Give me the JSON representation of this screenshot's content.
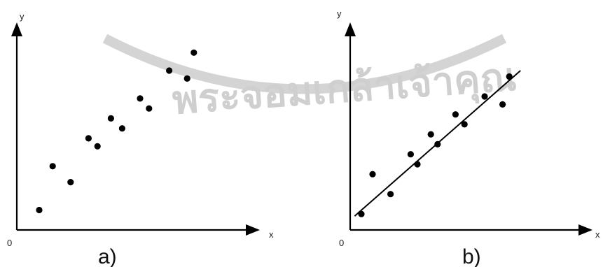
{
  "watermark": {
    "seal_text": "พระจอมเกล้าเจ้าคุณ",
    "color": "#cfcfcf"
  },
  "chart_data": [
    {
      "type": "scatter",
      "panel_label": "a)",
      "xlabel": "x",
      "ylabel": "y",
      "origin_label": "0",
      "xlim": [
        0,
        10
      ],
      "ylim": [
        0,
        10
      ],
      "points": [
        {
          "x": 1.0,
          "y": 1.0
        },
        {
          "x": 1.6,
          "y": 3.2
        },
        {
          "x": 2.4,
          "y": 2.4
        },
        {
          "x": 3.2,
          "y": 4.6
        },
        {
          "x": 3.6,
          "y": 4.2
        },
        {
          "x": 4.2,
          "y": 5.6
        },
        {
          "x": 4.7,
          "y": 5.1
        },
        {
          "x": 5.5,
          "y": 6.6
        },
        {
          "x": 5.9,
          "y": 6.1
        },
        {
          "x": 6.8,
          "y": 8.0
        },
        {
          "x": 7.6,
          "y": 7.6
        },
        {
          "x": 7.9,
          "y": 8.9
        }
      ],
      "fit_line": null,
      "grid": false,
      "legend": "none"
    },
    {
      "type": "scatter",
      "panel_label": "b)",
      "xlabel": "x",
      "ylabel": "y",
      "origin_label": "0",
      "xlim": [
        0,
        10
      ],
      "ylim": [
        0,
        10
      ],
      "points": [
        {
          "x": 0.5,
          "y": 0.8
        },
        {
          "x": 1.0,
          "y": 2.8
        },
        {
          "x": 1.8,
          "y": 1.8
        },
        {
          "x": 2.7,
          "y": 3.8
        },
        {
          "x": 3.0,
          "y": 3.3
        },
        {
          "x": 3.6,
          "y": 4.8
        },
        {
          "x": 3.9,
          "y": 4.3
        },
        {
          "x": 4.7,
          "y": 5.8
        },
        {
          "x": 5.1,
          "y": 5.3
        },
        {
          "x": 6.0,
          "y": 6.7
        },
        {
          "x": 6.8,
          "y": 6.3
        },
        {
          "x": 7.1,
          "y": 7.7
        }
      ],
      "fit_line": {
        "x0": 0.2,
        "y0": 0.7,
        "x1": 7.6,
        "y1": 8.0
      },
      "grid": false,
      "legend": "none"
    }
  ]
}
